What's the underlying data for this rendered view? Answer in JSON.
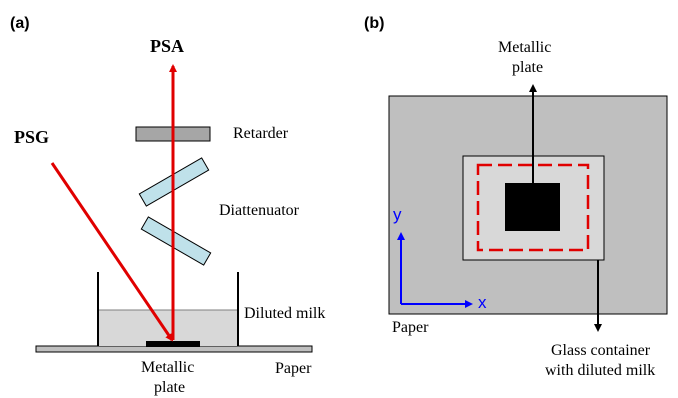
{
  "panel_a": {
    "label": "(a)",
    "psa": "PSA",
    "psg": "PSG",
    "retarder": "Retarder",
    "diattenuator": "Diattenuator",
    "diluted_milk": "Diluted milk",
    "paper": "Paper",
    "metallic_plate_line1": "Metallic",
    "metallic_plate_line2": "plate"
  },
  "panel_b": {
    "label": "(b)",
    "metallic_plate_line1": "Metallic",
    "metallic_plate_line2": "plate",
    "axis_y": "y",
    "axis_x": "x",
    "paper": "Paper",
    "glass_container_line1": "Glass container",
    "glass_container_line2": "with diluted milk"
  },
  "colors": {
    "beam": "#e00000",
    "optic_fill": "#bfe1ea",
    "retarder_fill": "#a6a6a6",
    "paper_fill": "#bfbfbf",
    "milk_fill": "#d8d8d8",
    "axis": "#0000ff"
  }
}
